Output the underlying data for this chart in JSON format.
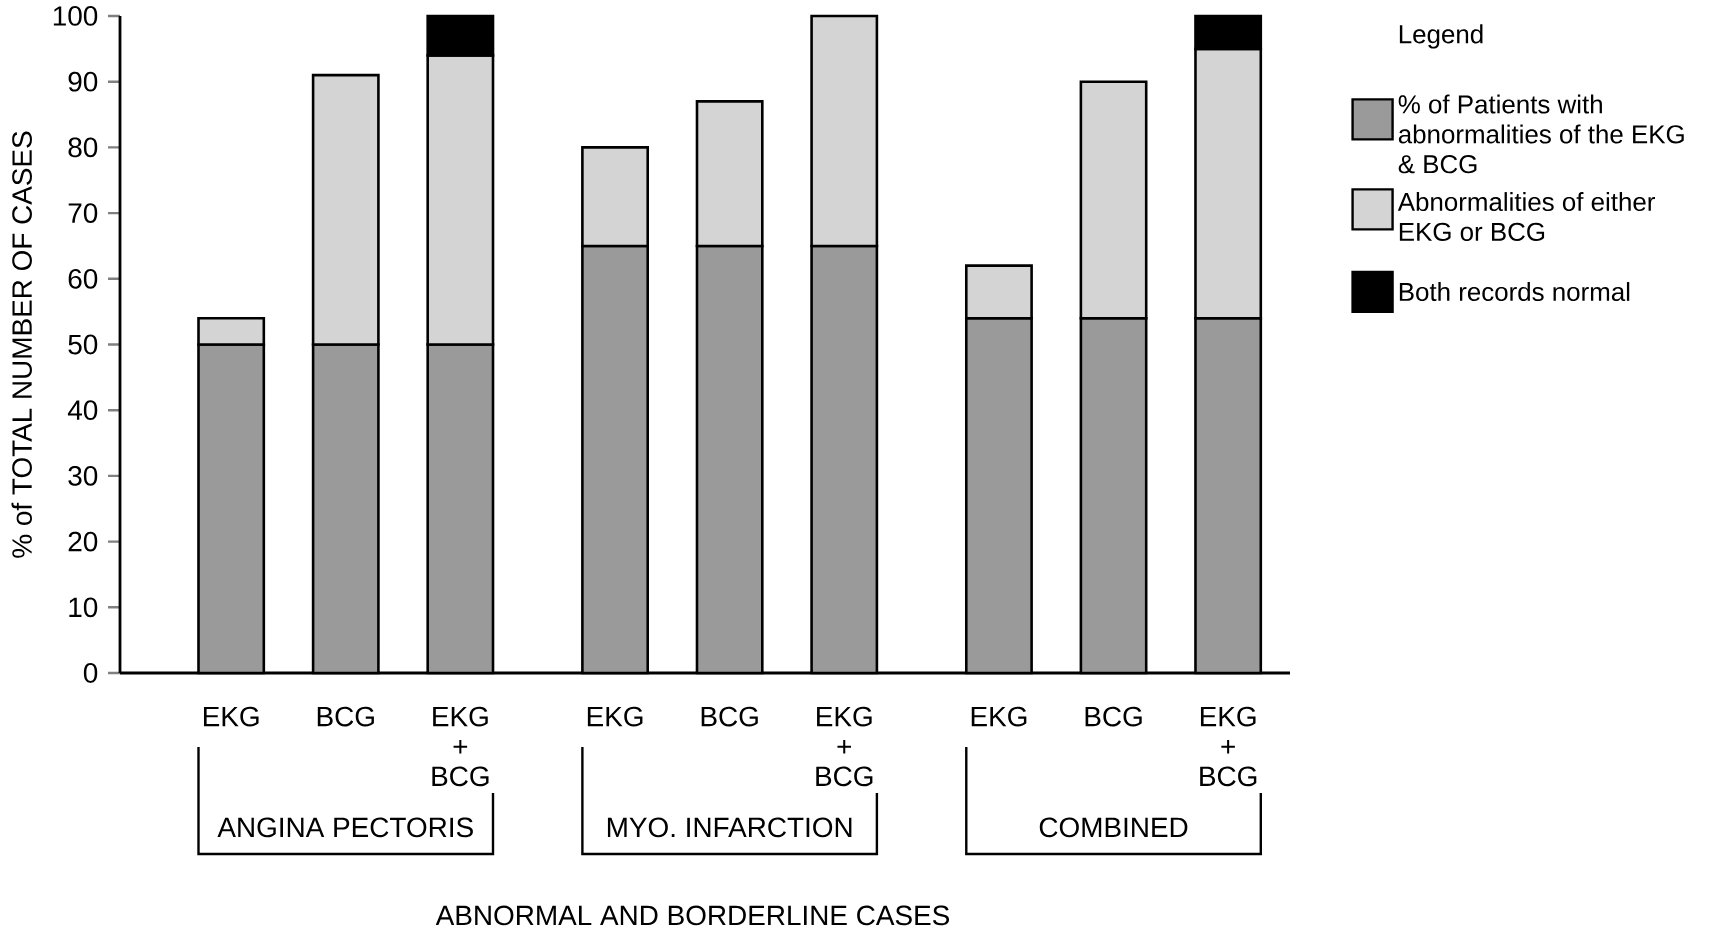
{
  "chart_data": {
    "type": "bar",
    "stacked": true,
    "categories": [
      "EKG",
      "BCG",
      "EKG + BCG",
      "EKG",
      "BCG",
      "EKG + BCG",
      "EKG",
      "BCG",
      "EKG + BCG"
    ],
    "series": [
      {
        "name": "% of Patients with abnormalities of the EKG & BCG",
        "color": "#9a9a9a",
        "values": [
          50,
          50,
          50,
          65,
          65,
          65,
          54,
          54,
          54
        ]
      },
      {
        "name": "Abnormalities of either EKG or BCG",
        "color": "#d4d4d4",
        "values": [
          4,
          41,
          44,
          15,
          22,
          35,
          8,
          36,
          41
        ]
      },
      {
        "name": "Both records normal",
        "color": "#000000",
        "values": [
          null,
          null,
          6,
          null,
          null,
          null,
          null,
          null,
          5
        ]
      }
    ],
    "ylabel": "% of TOTAL NUMBER OF CASES",
    "xlabel": "ABNORMAL AND BORDERLINE CASES",
    "legend_title": "Legend",
    "legend": "top right",
    "annotations": [
      "ANGINA PECTORIS",
      "MYO. INFARCTION",
      "COMBINED"
    ],
    "ylim": [
      0,
      100
    ],
    "yticks": [
      0,
      10,
      20,
      30,
      40,
      50,
      60,
      70,
      80,
      90,
      100
    ]
  }
}
